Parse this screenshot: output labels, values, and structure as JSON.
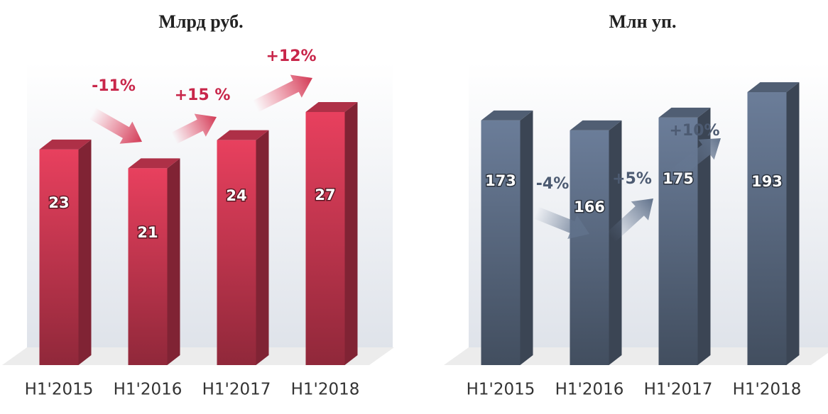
{
  "chart_data": [
    {
      "type": "bar3d",
      "title": "Млрд руб.",
      "categories": [
        "H1'2015",
        "H1'2016",
        "H1'2017",
        "H1'2018"
      ],
      "values": [
        23,
        21,
        24,
        27
      ],
      "color": "#e8405e",
      "annotations": [
        "-11%",
        "+15 %",
        "+12%"
      ]
    },
    {
      "type": "bar3d",
      "title": "Млн уп.",
      "categories": [
        "H1'2015",
        "H1'2016",
        "H1'2017",
        "H1'2018"
      ],
      "values": [
        173,
        166,
        175,
        193
      ],
      "color": "#6b7d99",
      "annotations": [
        "-4%",
        "+5%",
        "+10%"
      ]
    }
  ]
}
